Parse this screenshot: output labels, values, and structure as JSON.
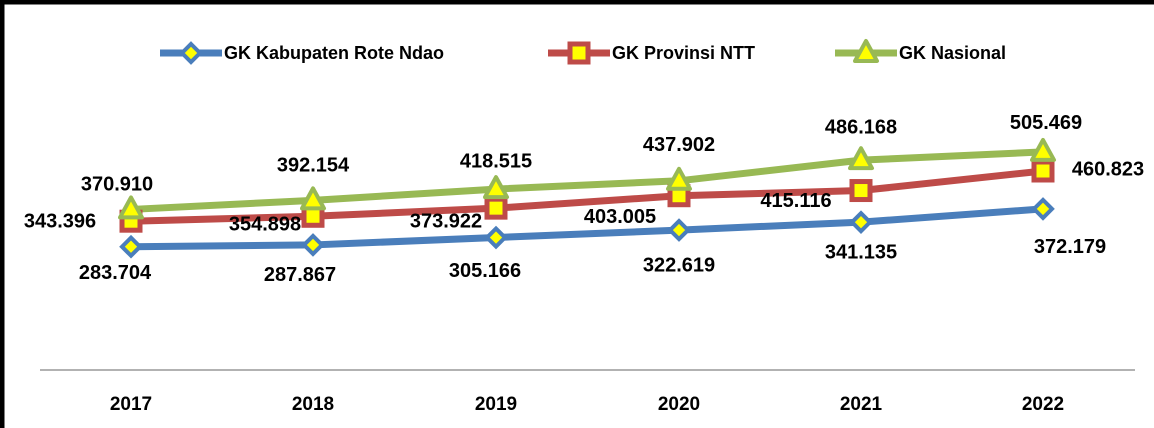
{
  "chart_data": {
    "type": "line",
    "categories": [
      "2017",
      "2018",
      "2019",
      "2020",
      "2021",
      "2022"
    ],
    "series": [
      {
        "name": "GK Kabupaten Rote Ndao",
        "color": "#4a7ebb",
        "marker": "diamond",
        "values": [
          283704,
          287867,
          305166,
          322619,
          341135,
          372179
        ],
        "value_labels": [
          "283.704",
          "287.867",
          "305.166",
          "322.619",
          "341.135",
          "372.179"
        ]
      },
      {
        "name": "GK Provinsi NTT",
        "color": "#be4b48",
        "marker": "square",
        "values": [
          343396,
          354898,
          373922,
          403005,
          415116,
          460823
        ],
        "value_labels": [
          "343.396",
          "354.898",
          "373.922",
          "403.005",
          "415.116",
          "460.823"
        ]
      },
      {
        "name": "GK Nasional",
        "color": "#98b954",
        "marker": "triangle",
        "values": [
          370910,
          392154,
          418515,
          437902,
          486168,
          505469
        ],
        "value_labels": [
          "370.910",
          "392.154",
          "418.515",
          "437.902",
          "486.168",
          "505.469"
        ]
      }
    ],
    "marker_fill": "#ffff00",
    "ylim": [
      0,
      800000
    ],
    "legend": "top"
  }
}
